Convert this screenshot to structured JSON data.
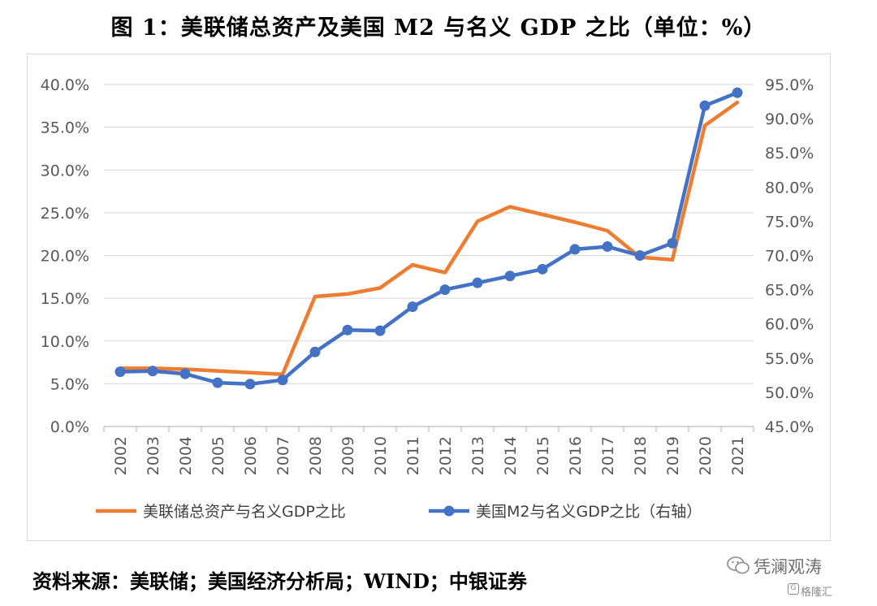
{
  "title": "图 1：美联储总资产及美国 M2 与名义 GDP 之比（单位：%）",
  "source": "资料来源：美联储；美国经济分析局；WIND；中银证券",
  "watermark": {
    "top": "凭澜观涛",
    "bottom": "格隆汇"
  },
  "chart_data": {
    "type": "line",
    "title": "图 1：美联储总资产及美国 M2 与名义 GDP 之比（单位：%）",
    "x": [
      "2002",
      "2003",
      "2004",
      "2005",
      "2006",
      "2007",
      "2008",
      "2009",
      "2010",
      "2011",
      "2012",
      "2013",
      "2014",
      "2015",
      "2016",
      "2017",
      "2018",
      "2019",
      "2020",
      "2021"
    ],
    "y_left": {
      "min": 0,
      "max": 40,
      "step": 5,
      "ticks": [
        "0.0%",
        "5.0%",
        "10.0%",
        "15.0%",
        "20.0%",
        "25.0%",
        "30.0%",
        "35.0%",
        "40.0%"
      ]
    },
    "y_right": {
      "min": 45,
      "max": 95,
      "step": 5,
      "ticks": [
        "45.0%",
        "50.0%",
        "55.0%",
        "60.0%",
        "65.0%",
        "70.0%",
        "75.0%",
        "80.0%",
        "85.0%",
        "90.0%",
        "95.0%"
      ]
    },
    "grid": true,
    "legend": "bottom",
    "series": [
      {
        "name": "美联储总资产与名义GDP之比",
        "axis": "left",
        "color": "#ed7d31",
        "marker": false,
        "values": [
          6.8,
          6.8,
          6.7,
          6.5,
          6.3,
          6.1,
          15.2,
          15.5,
          16.2,
          18.9,
          18.0,
          24.0,
          25.7,
          24.8,
          23.9,
          22.9,
          19.8,
          19.5,
          35.2,
          37.9
        ]
      },
      {
        "name": "美国M2与名义GDP之比（右轴）",
        "axis": "right",
        "color": "#4472c4",
        "marker": true,
        "values": [
          53.0,
          53.1,
          52.7,
          51.4,
          51.2,
          51.8,
          55.9,
          59.1,
          59.0,
          62.5,
          65.0,
          66.0,
          67.0,
          68.0,
          70.9,
          71.3,
          70.0,
          71.8,
          91.9,
          93.8
        ]
      }
    ]
  }
}
